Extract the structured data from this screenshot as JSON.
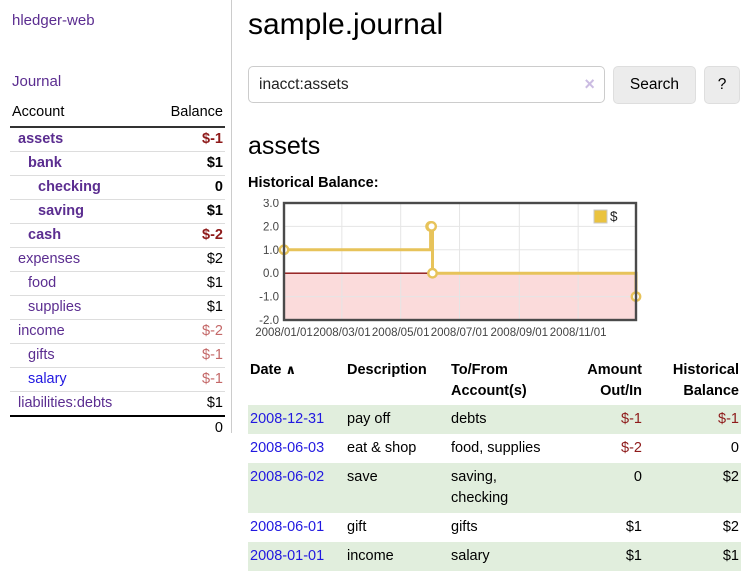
{
  "sidebar": {
    "brand": "hledger-web",
    "journal_label": "Journal",
    "accounts": {
      "header_account": "Account",
      "header_balance": "Balance",
      "rows": [
        {
          "label": "assets",
          "balance": "$-1",
          "depth": 1,
          "bold": true
        },
        {
          "label": "bank",
          "balance": "$1",
          "depth": 2,
          "bold": true
        },
        {
          "label": "checking",
          "balance": "0",
          "depth": 3,
          "bold": true
        },
        {
          "label": "saving",
          "balance": "$1",
          "depth": 3,
          "bold": true
        },
        {
          "label": "cash",
          "balance": "$-2",
          "depth": 2,
          "bold": true
        },
        {
          "label": "expenses",
          "balance": "$2",
          "depth": 1,
          "bold": false
        },
        {
          "label": "food",
          "balance": "$1",
          "depth": 2,
          "bold": false
        },
        {
          "label": "supplies",
          "balance": "$1",
          "depth": 2,
          "bold": false
        },
        {
          "label": "income",
          "balance": "$-2",
          "depth": 1,
          "bold": false
        },
        {
          "label": "gifts",
          "balance": "$-1",
          "depth": 2,
          "bold": false
        },
        {
          "label": "salary",
          "balance": "$-1",
          "depth": 2,
          "bold": false,
          "blue": true
        },
        {
          "label": "liabilities:debts",
          "balance": "$1",
          "depth": 1,
          "bold": false
        }
      ],
      "total": "0"
    }
  },
  "main": {
    "title": "sample.journal",
    "search": {
      "value": "inacct:assets",
      "clear_icon": "×",
      "button_label": "Search",
      "help_label": "?"
    },
    "account_heading": "assets",
    "chart_heading": "Historical Balance:",
    "register": {
      "headers": {
        "date": "Date",
        "sort_icon": "∧",
        "description": "Description",
        "accounts": "To/From Account(s)",
        "amount": "Amount Out/In",
        "balance": "Historical Balance"
      },
      "rows": [
        {
          "date": "2008-12-31",
          "description": "pay off",
          "accounts": "debts",
          "amount": "$-1",
          "balance": "$-1"
        },
        {
          "date": "2008-06-03",
          "description": "eat & shop",
          "accounts": "food, supplies",
          "amount": "$-2",
          "balance": "0"
        },
        {
          "date": "2008-06-02",
          "description": "save",
          "accounts": "saving,\nchecking",
          "amount": "0",
          "balance": "$2"
        },
        {
          "date": "2008-06-01",
          "description": "gift",
          "accounts": "gifts",
          "amount": "$1",
          "balance": "$2"
        },
        {
          "date": "2008-01-01",
          "description": "income",
          "accounts": "salary",
          "amount": "$1",
          "balance": "$1"
        }
      ]
    }
  },
  "chart_data": {
    "type": "line",
    "step": true,
    "title": "Historical Balance:",
    "series": [
      {
        "name": "$",
        "points": [
          [
            "2008-01-01",
            1
          ],
          [
            "2008-06-01",
            2
          ],
          [
            "2008-06-02",
            2
          ],
          [
            "2008-06-03",
            0
          ],
          [
            "2008-12-31",
            -1
          ]
        ]
      }
    ],
    "ylim": [
      -2,
      3
    ],
    "yticks": [
      3,
      2,
      1,
      0,
      -1,
      -2
    ],
    "ytick_labels": [
      "3.0",
      "2.0",
      "1.0",
      "0.0",
      "-1.0",
      "-2.0"
    ],
    "xticks": [
      "2008/01/01",
      "2008/03/01",
      "2008/05/01",
      "2008/07/01",
      "2008/09/01",
      "2008/11/01"
    ],
    "legend": [
      "$"
    ],
    "legend_position": "top-right",
    "grid": true,
    "colors": {
      "line": "#e7c35a",
      "marker_fill": "#ffffff",
      "negative_region": "#fbdbdb",
      "zero_line": "#8b0f0f",
      "border": "#4a4a4a",
      "grid": "#e5e5e5",
      "legend_swatch": "#eac33f",
      "tick_text": "#444444"
    }
  },
  "colors": {
    "link_purple": "#5b2d90",
    "link_blue": "#2118e0",
    "negative_strong": "#8e1a1a",
    "negative_soft": "#c46868",
    "stripe_green": "#e1eedd"
  }
}
